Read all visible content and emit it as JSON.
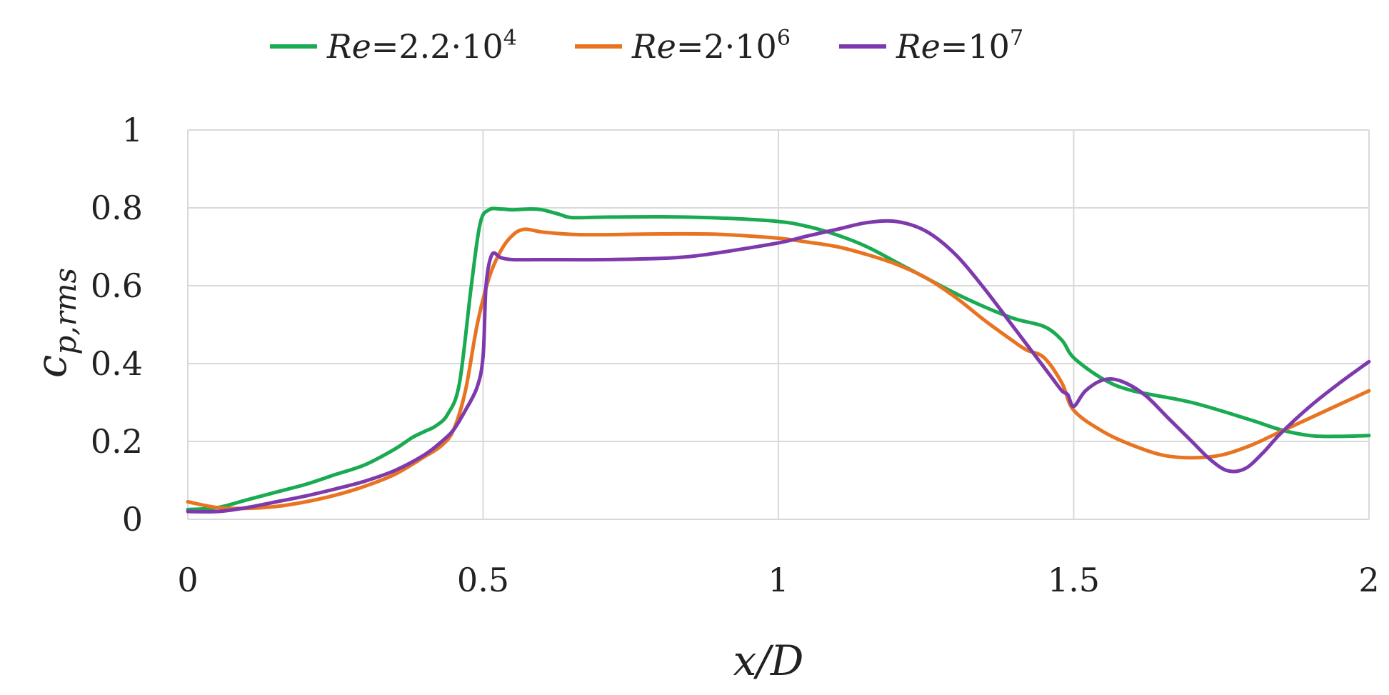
{
  "chart_data": {
    "type": "line",
    "xlabel": "x/D",
    "ylabel": "c",
    "ylabel_sub": "p,rms",
    "xlim": [
      0,
      2
    ],
    "ylim": [
      0,
      1
    ],
    "x_ticks": [
      "0",
      "0.5",
      "1",
      "1.5",
      "2"
    ],
    "y_ticks": [
      "0",
      "0.2",
      "0.4",
      "0.6",
      "0.8",
      "1"
    ],
    "grid": true,
    "legend_position": "top-center",
    "series": [
      {
        "name": "Re=2.2·10⁴",
        "legend": {
          "prefix": "Re",
          "rest": "=2.2·10",
          "sup": "4"
        },
        "color": "#1aab52",
        "points": [
          [
            0.0,
            0.025
          ],
          [
            0.05,
            0.03
          ],
          [
            0.1,
            0.05
          ],
          [
            0.15,
            0.07
          ],
          [
            0.2,
            0.09
          ],
          [
            0.25,
            0.115
          ],
          [
            0.3,
            0.14
          ],
          [
            0.35,
            0.18
          ],
          [
            0.38,
            0.21
          ],
          [
            0.4,
            0.225
          ],
          [
            0.42,
            0.24
          ],
          [
            0.44,
            0.27
          ],
          [
            0.46,
            0.35
          ],
          [
            0.48,
            0.6
          ],
          [
            0.495,
            0.76
          ],
          [
            0.51,
            0.795
          ],
          [
            0.53,
            0.797
          ],
          [
            0.55,
            0.795
          ],
          [
            0.58,
            0.797
          ],
          [
            0.6,
            0.795
          ],
          [
            0.63,
            0.783
          ],
          [
            0.65,
            0.775
          ],
          [
            0.7,
            0.776
          ],
          [
            0.8,
            0.777
          ],
          [
            0.9,
            0.774
          ],
          [
            1.0,
            0.765
          ],
          [
            1.05,
            0.752
          ],
          [
            1.1,
            0.73
          ],
          [
            1.15,
            0.7
          ],
          [
            1.2,
            0.66
          ],
          [
            1.25,
            0.62
          ],
          [
            1.3,
            0.58
          ],
          [
            1.35,
            0.545
          ],
          [
            1.4,
            0.515
          ],
          [
            1.45,
            0.495
          ],
          [
            1.48,
            0.46
          ],
          [
            1.5,
            0.415
          ],
          [
            1.55,
            0.36
          ],
          [
            1.6,
            0.33
          ],
          [
            1.7,
            0.3
          ],
          [
            1.8,
            0.255
          ],
          [
            1.85,
            0.23
          ],
          [
            1.9,
            0.215
          ],
          [
            1.95,
            0.213
          ],
          [
            2.0,
            0.215
          ]
        ]
      },
      {
        "name": "Re=2·10⁶",
        "legend": {
          "prefix": "Re",
          "rest": "=2·10",
          "sup": "6"
        },
        "color": "#e87422",
        "points": [
          [
            0.0,
            0.045
          ],
          [
            0.05,
            0.03
          ],
          [
            0.1,
            0.028
          ],
          [
            0.15,
            0.033
          ],
          [
            0.2,
            0.045
          ],
          [
            0.25,
            0.062
          ],
          [
            0.3,
            0.085
          ],
          [
            0.35,
            0.115
          ],
          [
            0.4,
            0.16
          ],
          [
            0.43,
            0.19
          ],
          [
            0.45,
            0.23
          ],
          [
            0.47,
            0.33
          ],
          [
            0.49,
            0.5
          ],
          [
            0.51,
            0.62
          ],
          [
            0.53,
            0.69
          ],
          [
            0.55,
            0.73
          ],
          [
            0.57,
            0.745
          ],
          [
            0.6,
            0.738
          ],
          [
            0.65,
            0.732
          ],
          [
            0.7,
            0.731
          ],
          [
            0.8,
            0.733
          ],
          [
            0.9,
            0.732
          ],
          [
            1.0,
            0.722
          ],
          [
            1.05,
            0.712
          ],
          [
            1.1,
            0.7
          ],
          [
            1.15,
            0.68
          ],
          [
            1.2,
            0.655
          ],
          [
            1.25,
            0.62
          ],
          [
            1.3,
            0.57
          ],
          [
            1.35,
            0.51
          ],
          [
            1.4,
            0.455
          ],
          [
            1.42,
            0.435
          ],
          [
            1.45,
            0.415
          ],
          [
            1.48,
            0.35
          ],
          [
            1.5,
            0.28
          ],
          [
            1.55,
            0.225
          ],
          [
            1.6,
            0.19
          ],
          [
            1.65,
            0.165
          ],
          [
            1.7,
            0.158
          ],
          [
            1.75,
            0.165
          ],
          [
            1.8,
            0.19
          ],
          [
            1.85,
            0.225
          ],
          [
            1.9,
            0.26
          ],
          [
            1.95,
            0.295
          ],
          [
            2.0,
            0.33
          ]
        ]
      },
      {
        "name": "Re=10⁷",
        "legend": {
          "prefix": "Re",
          "rest": "=10",
          "sup": "7"
        },
        "color": "#7e3aad",
        "points": [
          [
            0.0,
            0.02
          ],
          [
            0.05,
            0.02
          ],
          [
            0.1,
            0.03
          ],
          [
            0.15,
            0.045
          ],
          [
            0.2,
            0.06
          ],
          [
            0.25,
            0.078
          ],
          [
            0.3,
            0.098
          ],
          [
            0.35,
            0.125
          ],
          [
            0.4,
            0.165
          ],
          [
            0.43,
            0.2
          ],
          [
            0.45,
            0.23
          ],
          [
            0.47,
            0.28
          ],
          [
            0.49,
            0.34
          ],
          [
            0.5,
            0.42
          ],
          [
            0.505,
            0.6
          ],
          [
            0.515,
            0.68
          ],
          [
            0.53,
            0.672
          ],
          [
            0.55,
            0.667
          ],
          [
            0.6,
            0.667
          ],
          [
            0.7,
            0.667
          ],
          [
            0.8,
            0.67
          ],
          [
            0.85,
            0.675
          ],
          [
            0.9,
            0.685
          ],
          [
            1.0,
            0.71
          ],
          [
            1.05,
            0.728
          ],
          [
            1.1,
            0.745
          ],
          [
            1.15,
            0.762
          ],
          [
            1.2,
            0.765
          ],
          [
            1.25,
            0.74
          ],
          [
            1.3,
            0.68
          ],
          [
            1.35,
            0.59
          ],
          [
            1.4,
            0.49
          ],
          [
            1.43,
            0.43
          ],
          [
            1.46,
            0.37
          ],
          [
            1.48,
            0.33
          ],
          [
            1.49,
            0.32
          ],
          [
            1.5,
            0.29
          ],
          [
            1.52,
            0.33
          ],
          [
            1.55,
            0.358
          ],
          [
            1.58,
            0.355
          ],
          [
            1.62,
            0.32
          ],
          [
            1.66,
            0.26
          ],
          [
            1.7,
            0.2
          ],
          [
            1.73,
            0.155
          ],
          [
            1.76,
            0.125
          ],
          [
            1.79,
            0.13
          ],
          [
            1.82,
            0.17
          ],
          [
            1.85,
            0.22
          ],
          [
            1.9,
            0.29
          ],
          [
            1.95,
            0.35
          ],
          [
            2.0,
            0.405
          ]
        ]
      }
    ]
  }
}
